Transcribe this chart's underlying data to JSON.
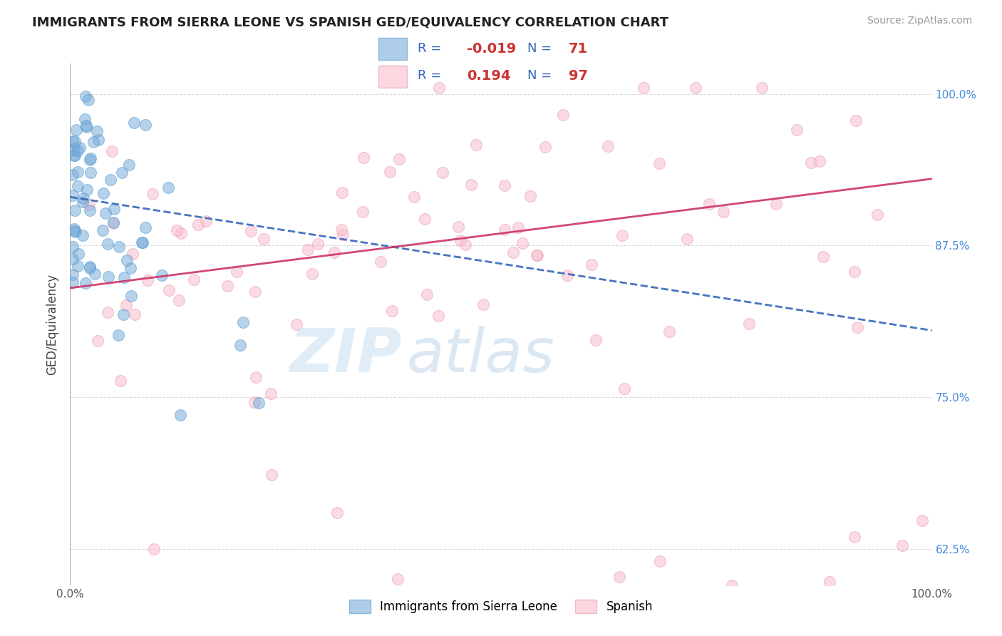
{
  "title": "IMMIGRANTS FROM SIERRA LEONE VS SPANISH GED/EQUIVALENCY CORRELATION CHART",
  "source_text": "Source: ZipAtlas.com",
  "ylabel": "GED/Equivalency",
  "xlim": [
    0.0,
    1.0
  ],
  "ylim": [
    0.595,
    1.025
  ],
  "yticks": [
    0.625,
    0.75,
    0.875,
    1.0
  ],
  "ytick_labels": [
    "62.5%",
    "75.0%",
    "87.5%",
    "100.0%"
  ],
  "xtick_labels": [
    "0.0%",
    "100.0%"
  ],
  "background_color": "#ffffff",
  "grid_color": "#d8d8d8",
  "blue_color": "#7aaddb",
  "blue_edge": "#5599cc",
  "pink_color": "#f9bfcc",
  "pink_edge": "#e899aa",
  "blue_R": -0.019,
  "blue_N": 71,
  "pink_R": 0.194,
  "pink_N": 97,
  "legend_label_blue": "Immigrants from Sierra Leone",
  "legend_label_pink": "Spanish",
  "watermark1": "ZIP",
  "watermark2": "atlas",
  "blue_line": [
    0.0,
    0.915,
    1.0,
    0.805
  ],
  "pink_line": [
    0.0,
    0.84,
    1.0,
    0.93
  ],
  "title_fontsize": 13,
  "source_fontsize": 10,
  "scatter_size": 130,
  "scatter_alpha": 0.55
}
